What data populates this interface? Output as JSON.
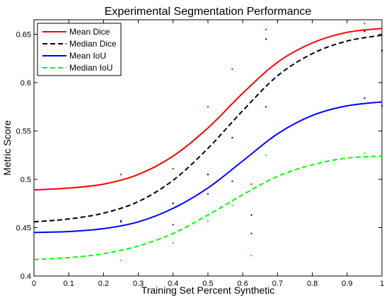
{
  "chart_data": {
    "type": "line",
    "title": "Experimental Segmentation Performance",
    "xlabel": "Training Set Percent Synthetic",
    "ylabel": "Metric Score",
    "xlim": [
      0,
      1
    ],
    "ylim": [
      0.4,
      0.665
    ],
    "xticks": [
      "0",
      "0.1",
      "0.2",
      "0.3",
      "0.4",
      "0.5",
      "0.6",
      "0.7",
      "0.8",
      "0.9",
      "1"
    ],
    "yticks": [
      "0.4",
      "0.45",
      "0.5",
      "0.55",
      "0.6",
      "0.65"
    ],
    "grid": false,
    "legend_position": "top-left",
    "series": [
      {
        "name": "Mean Dice",
        "color": "#ff0000",
        "dash": "solid",
        "curve": {
          "x": [
            0,
            0.1,
            0.2,
            0.3,
            0.4,
            0.5,
            0.6,
            0.7,
            0.8,
            0.9,
            1.0
          ],
          "y": [
            0.489,
            0.491,
            0.495,
            0.505,
            0.524,
            0.553,
            0.589,
            0.621,
            0.641,
            0.652,
            0.656
          ]
        },
        "points": {
          "x": [
            0.25,
            0.4,
            0.5,
            0.57,
            0.625,
            0.667,
            0.95
          ],
          "y": [
            0.505,
            0.511,
            0.575,
            0.614,
            0.495,
            0.655,
            0.661
          ]
        }
      },
      {
        "name": "Median Dice",
        "color": "#000000",
        "dash": "dashed",
        "curve": {
          "x": [
            0,
            0.1,
            0.2,
            0.3,
            0.4,
            0.5,
            0.6,
            0.7,
            0.8,
            0.9,
            1.0
          ],
          "y": [
            0.456,
            0.459,
            0.465,
            0.477,
            0.499,
            0.532,
            0.571,
            0.607,
            0.63,
            0.643,
            0.649
          ]
        },
        "points": {
          "x": [
            0.25,
            0.4,
            0.5,
            0.57,
            0.625,
            0.667,
            0.95,
            1.0
          ],
          "y": [
            0.457,
            0.475,
            0.505,
            0.543,
            0.463,
            0.645,
            0.653,
            0.633
          ]
        }
      },
      {
        "name": "Mean IoU",
        "color": "#0000ff",
        "dash": "solid",
        "curve": {
          "x": [
            0,
            0.1,
            0.2,
            0.3,
            0.4,
            0.5,
            0.6,
            0.7,
            0.8,
            0.9,
            1.0
          ],
          "y": [
            0.445,
            0.446,
            0.449,
            0.456,
            0.47,
            0.491,
            0.519,
            0.547,
            0.566,
            0.576,
            0.58
          ]
        },
        "points": {
          "x": [
            0.25,
            0.4,
            0.5,
            0.57,
            0.625,
            0.667,
            0.95,
            1.0
          ],
          "y": [
            0.456,
            0.453,
            0.485,
            0.498,
            0.444,
            0.575,
            0.584,
            0.576
          ]
        }
      },
      {
        "name": "Median IoU",
        "color": "#00ff00",
        "dash": "dashed",
        "curve": {
          "x": [
            0,
            0.1,
            0.2,
            0.3,
            0.4,
            0.5,
            0.6,
            0.7,
            0.8,
            0.9,
            1.0
          ],
          "y": [
            0.417,
            0.419,
            0.423,
            0.431,
            0.444,
            0.463,
            0.484,
            0.503,
            0.515,
            0.522,
            0.524
          ]
        },
        "points": {
          "x": [
            0.25,
            0.4,
            0.5,
            0.57,
            0.625,
            0.667,
            0.95
          ],
          "y": [
            0.416,
            0.434,
            0.457,
            0.473,
            0.421,
            0.525,
            0.527
          ]
        }
      }
    ]
  }
}
